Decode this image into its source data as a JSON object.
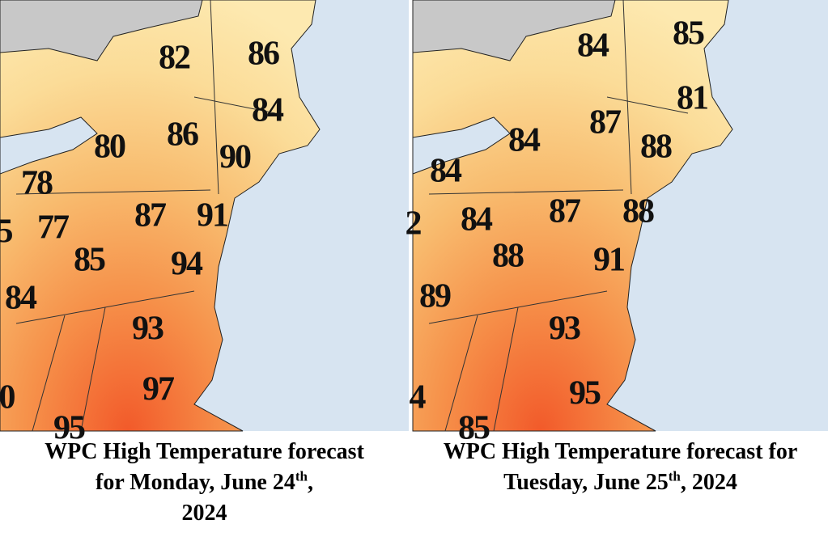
{
  "panels": [
    {
      "labels": [
        "82",
        "86",
        "84",
        "80",
        "86",
        "90",
        "78",
        "5",
        "77",
        "87",
        "91",
        "85",
        "94",
        "84",
        "93",
        "97",
        "0",
        "95"
      ],
      "caption": [
        "WPC High Temperature forecast for Monday, June 24",
        "th",
        ",",
        "2024"
      ]
    },
    {
      "labels": [
        "84",
        "85",
        "81",
        "84",
        "87",
        "88",
        "84",
        "2",
        "84",
        "87",
        "88",
        "88",
        "91",
        "89",
        "93",
        "95",
        "4",
        "85"
      ],
      "caption": [
        "WPC High Temperature forecast for Tuesday, June 25",
        "th",
        ", 2024"
      ]
    }
  ]
}
